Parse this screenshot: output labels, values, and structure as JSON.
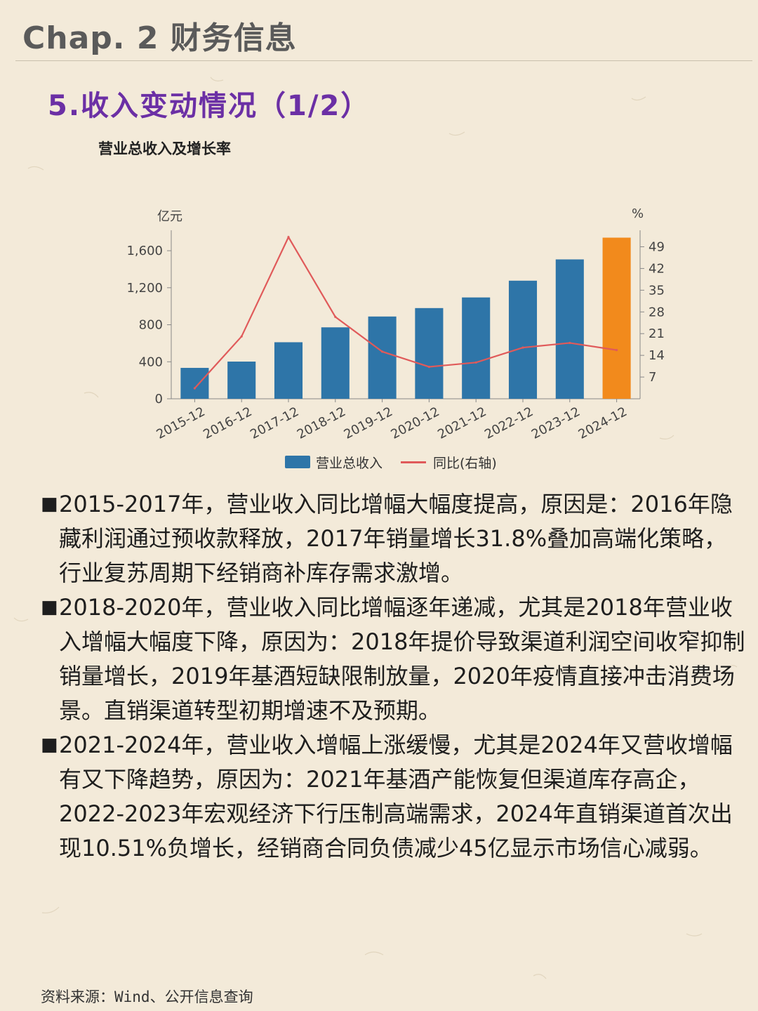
{
  "header": {
    "chapter": "Chap. 2 财务信息",
    "section": "5.收入变动情况（1/2）"
  },
  "chart_data": {
    "type": "bar",
    "title": "营业总收入及增长率",
    "xlabel": "",
    "ylabel": "亿元",
    "ylabel_right": "%",
    "categories": [
      "2015-12",
      "2016-12",
      "2017-12",
      "2018-12",
      "2019-12",
      "2020-12",
      "2021-12",
      "2022-12",
      "2023-12",
      "2024-12"
    ],
    "series": [
      {
        "name": "营业总收入",
        "kind": "bar",
        "axis": "left",
        "values": [
          334,
          402,
          611,
          772,
          889,
          980,
          1095,
          1276,
          1506,
          1741
        ],
        "color": "#2e75a8",
        "highlight_last_color": "#f28a1c"
      },
      {
        "name": "同比(右轴)",
        "kind": "line",
        "axis": "right",
        "values": [
          3.4,
          20.1,
          52.1,
          26.4,
          15.2,
          10.3,
          11.7,
          16.5,
          18.0,
          15.7
        ],
        "color": "#e05a5a"
      }
    ],
    "ylim": [
      0,
      1760
    ],
    "yticks": [
      0,
      400,
      800,
      1200,
      1600
    ],
    "ytick_labels": [
      "0",
      "400",
      "800",
      "1,200",
      "1,600"
    ],
    "ylim_right": [
      0,
      52.5
    ],
    "yticks_right": [
      7,
      14,
      21,
      28,
      35,
      42,
      49
    ],
    "grid": false,
    "legend": "bottom"
  },
  "bullets": [
    "2015-2017年，营业收入同比增幅大幅度提高，原因是：2016年隐藏利润通过预收款释放，2017年销量增长31.8%叠加高端化策略，行业复苏周期下经销商补库存需求激增。",
    "2018-2020年，营业收入同比增幅逐年递减，尤其是2018年营业收入增幅大幅度下降，原因为：2018年提价导致渠道利润空间收窄抑制销量增长，2019年基酒短缺限制放量，2020年疫情直接冲击消费场景。直销渠道转型初期增速不及预期。",
    "2021-2024年，营业收入增幅上涨缓慢，尤其是2024年又营收增幅有又下降趋势，原因为：2021年基酒产能恢复但渠道库存高企，2022-2023年宏观经济下行压制高端需求，2024年直销渠道首次出现10.51%负增长，经销商合同负债减少45亿显示市场信心减弱。"
  ],
  "bullet_mark": "■",
  "footer": {
    "source": "资料来源：Wind、公开信息查询"
  }
}
